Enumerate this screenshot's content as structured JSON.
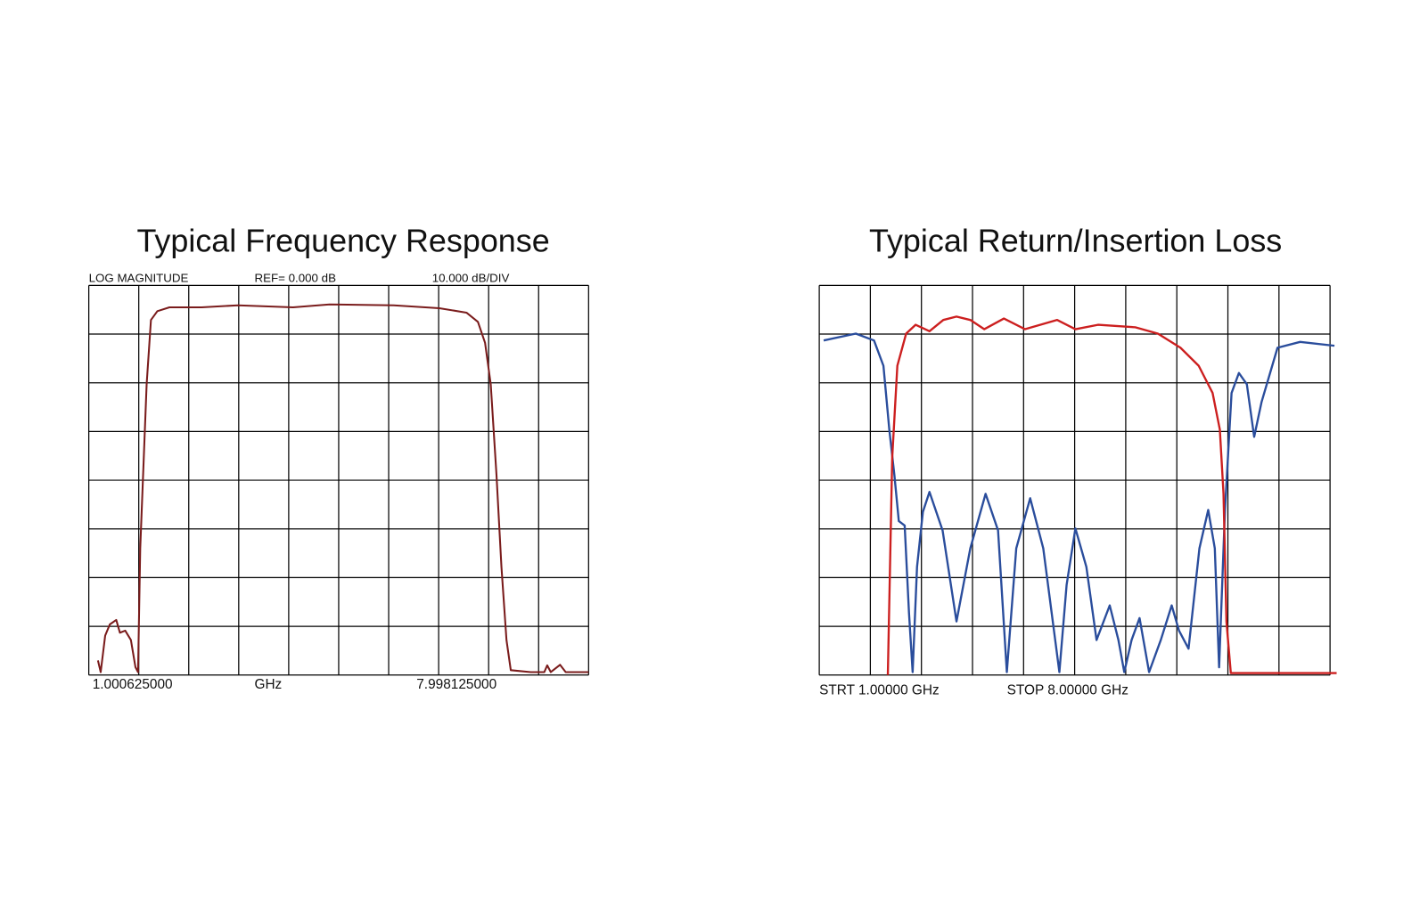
{
  "chart_data": [
    {
      "type": "line",
      "title": "Typical Frequency Response",
      "annotations": [
        "LOG MAGNITUDE",
        "REF=   0.000 dB",
        "10.000 dB/DIV",
        "1.000625000",
        "GHz",
        "7.998125000"
      ],
      "x": [
        1.128,
        1.167,
        1.23,
        1.295,
        1.385,
        1.436,
        1.51,
        1.59,
        1.654,
        1.69,
        1.72,
        1.81,
        1.87,
        1.96,
        2.13,
        2.58,
        3.09,
        3.86,
        4.37,
        5.27,
        5.91,
        6.29,
        6.45,
        6.55,
        6.63,
        6.71,
        6.78,
        6.85,
        6.91,
        7.19,
        7.38,
        7.42,
        7.47,
        7.6,
        7.68,
        8.0
      ],
      "series": [
        {
          "color": "#7a1c1c",
          "values": [
            -77,
            -79.4,
            -71.9,
            -69.6,
            -68.7,
            -71.3,
            -70.9,
            -72.8,
            -78.4,
            -79.4,
            -54,
            -20.3,
            -7.1,
            -5.3,
            -4.5,
            -4.5,
            -4.1,
            -4.5,
            -3.9,
            -4.1,
            -4.7,
            -5.6,
            -7.5,
            -11.8,
            -20.3,
            -39,
            -57.8,
            -72.8,
            -79,
            -79.4,
            -79.4,
            -78,
            -79.4,
            -77.9,
            -79.4,
            -79.4
          ]
        }
      ],
      "xlim": [
        1,
        8
      ],
      "ylim": [
        -80,
        0
      ],
      "xticks": [
        1,
        1.7,
        2.4,
        3.1,
        3.8,
        4.5,
        5.2,
        5.9,
        6.6,
        7.3,
        8
      ],
      "yticks": [
        -80,
        -70,
        -60,
        -50,
        -40,
        -30,
        -20,
        -10,
        0
      ],
      "grid": true
    },
    {
      "type": "line",
      "title": "Typical Return/Insertion Loss",
      "annotations": [
        "STRT 1.00000 GHz",
        "STOP 8.00000 GHz"
      ],
      "series": [
        {
          "color": "#2a4d9c",
          "x": [
            1.06,
            1.5,
            1.75,
            1.88,
            1.96,
            2.03,
            2.09,
            2.17,
            2.23,
            2.28,
            2.34,
            2.42,
            2.51,
            2.69,
            2.88,
            3.07,
            3.28,
            3.45,
            3.57,
            3.7,
            3.89,
            4.07,
            4.29,
            4.39,
            4.51,
            4.66,
            4.8,
            4.98,
            5.1,
            5.18,
            5.28,
            5.39,
            5.52,
            5.68,
            5.83,
            5.93,
            6.06,
            6.21,
            6.33,
            6.42,
            6.48,
            6.56,
            6.65,
            6.75,
            6.86,
            6.96,
            7.06,
            7.28,
            7.59,
            8.06
          ],
          "values": [
            -11.3,
            -9.9,
            -11.3,
            -16.5,
            -29.6,
            -39,
            -48.4,
            -49.3,
            -67.2,
            -79.4,
            -57.8,
            -46.5,
            -42.4,
            -50.3,
            -69,
            -54,
            -42.8,
            -50.3,
            -79.4,
            -54,
            -43.7,
            -54,
            -79.4,
            -61.5,
            -49.9,
            -57.8,
            -72.8,
            -65.7,
            -72.8,
            -79.4,
            -72.8,
            -68.3,
            -79.4,
            -72.8,
            -65.7,
            -70.9,
            -74.6,
            -54,
            -46.1,
            -54,
            -78.4,
            -46.1,
            -22.1,
            -18,
            -20.3,
            -31.1,
            -24,
            -12.8,
            -11.6,
            -12.4
          ]
        },
        {
          "color": "#cc1f1f",
          "x": [
            1.94,
            2.0,
            2.07,
            2.19,
            2.32,
            2.51,
            2.7,
            2.88,
            3.07,
            3.26,
            3.53,
            3.82,
            4.07,
            4.26,
            4.51,
            4.82,
            5.33,
            5.64,
            5.95,
            6.2,
            6.39,
            6.49,
            6.54,
            6.58,
            6.64,
            8.09
          ],
          "values": [
            -80,
            -35.3,
            -16.5,
            -9.9,
            -8.1,
            -9.4,
            -7.1,
            -6.4,
            -7.1,
            -9,
            -6.8,
            -9,
            -7.9,
            -7.1,
            -9,
            -8.1,
            -8.6,
            -9.9,
            -12.8,
            -16.5,
            -22.1,
            -29.6,
            -42.8,
            -69,
            -79.6,
            -79.6
          ]
        }
      ],
      "xlim": [
        1,
        8
      ],
      "ylim": [
        -80,
        0
      ],
      "xticks": [
        1,
        1.7,
        2.4,
        3.1,
        3.8,
        4.5,
        5.2,
        5.9,
        6.6,
        7.3,
        8
      ],
      "yticks": [
        -80,
        -70,
        -60,
        -50,
        -40,
        -30,
        -20,
        -10,
        0
      ],
      "grid": true
    }
  ]
}
